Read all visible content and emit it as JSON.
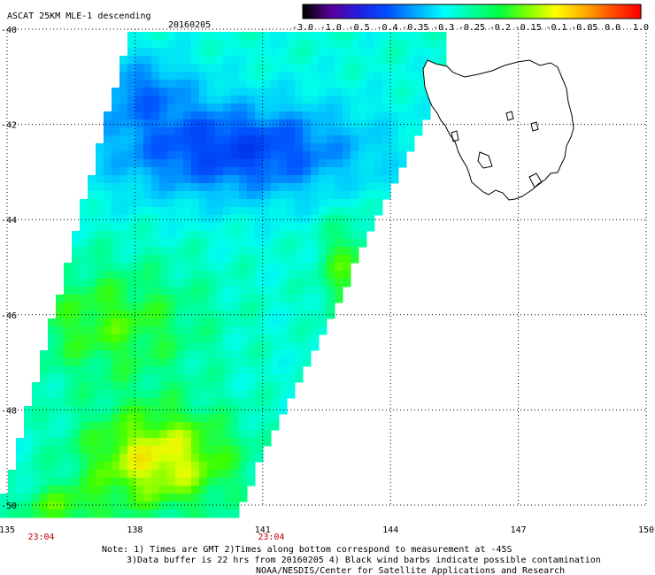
{
  "header": {
    "product": "ASCAT 25KM MLE-1 descending",
    "date": "20160205"
  },
  "colorbar": {
    "labels": [
      "-3.0",
      "-1.0",
      "-0.5",
      "-0.4",
      "-0.35",
      "-0.3",
      "-0.25",
      "-0.2",
      "-0.15",
      "-0.1",
      "-0.05",
      "0.0",
      "1.0"
    ],
    "colors": [
      "#000000",
      "#5a00a0",
      "#2020e0",
      "#0050ff",
      "#00a8ff",
      "#00ffff",
      "#00ffa0",
      "#00ff40",
      "#80ff00",
      "#ffff00",
      "#ffb000",
      "#ff5000",
      "#ff0000"
    ]
  },
  "map": {
    "lat_labels": [
      "-40",
      "-42",
      "-44",
      "-46",
      "-48",
      "-50"
    ],
    "lon_labels": [
      "135",
      "138",
      "141",
      "144",
      "147",
      "150"
    ],
    "lat_ticks": [
      -40,
      -42,
      -44,
      -46,
      -48,
      -50
    ],
    "lon_ticks": [
      135,
      138,
      141,
      144,
      147,
      150
    ],
    "lon_range": [
      135,
      150
    ],
    "lat_range": [
      -40,
      -50
    ],
    "time_labels": [
      "23:04",
      "23:04"
    ],
    "time_lons": [
      135.8,
      141.2
    ]
  },
  "notes": {
    "line1": "Note: 1) Times are GMT 2)Times along bottom correspond to measurement at -45S",
    "line2": "3)Data buffer is 22 hrs from 20160205 4) Black wind barbs indicate possible contamination",
    "line3": "NOAA/NESDIS/Center for Satellite Applications and Research"
  }
}
